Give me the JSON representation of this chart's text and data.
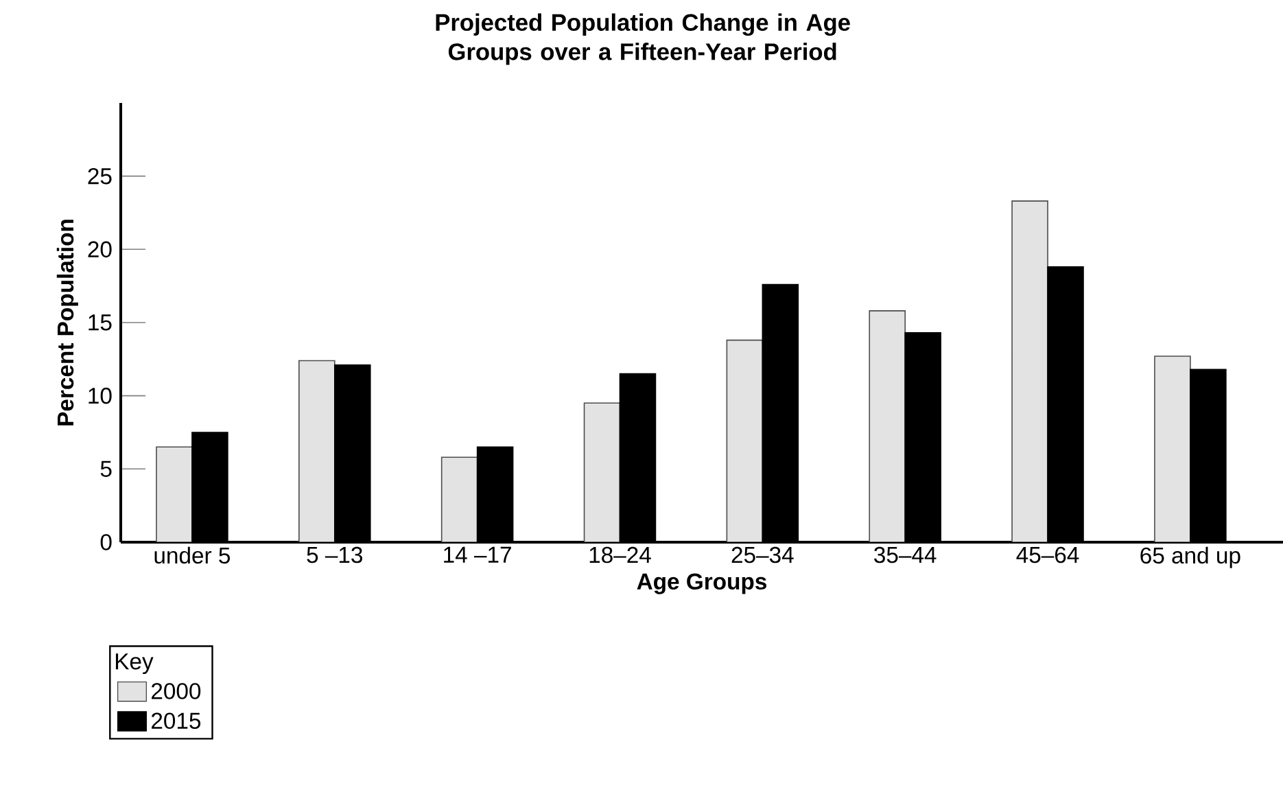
{
  "chart_data": {
    "type": "bar",
    "title": "Projected Population Change in Age Groups over a Fifteen-Year Period",
    "xlabel": "Age Groups",
    "ylabel": "Percent Population",
    "legend_title": "Key",
    "categories": [
      "under 5",
      "5 –13",
      "14 –17",
      "18–24",
      "25–34",
      "35–44",
      "45–64",
      "65 and up"
    ],
    "series": [
      {
        "name": "2000",
        "color": "#e3e3e3",
        "values": [
          6.5,
          12.4,
          5.8,
          9.5,
          13.8,
          15.8,
          23.3,
          12.7
        ]
      },
      {
        "name": "2015",
        "color": "#000000",
        "values": [
          7.5,
          12.1,
          6.5,
          11.5,
          17.6,
          14.3,
          18.8,
          11.8
        ]
      }
    ],
    "ylim": [
      0,
      30
    ],
    "yticks": [
      0,
      5,
      10,
      15,
      20,
      25
    ],
    "legend": "bottom left"
  }
}
